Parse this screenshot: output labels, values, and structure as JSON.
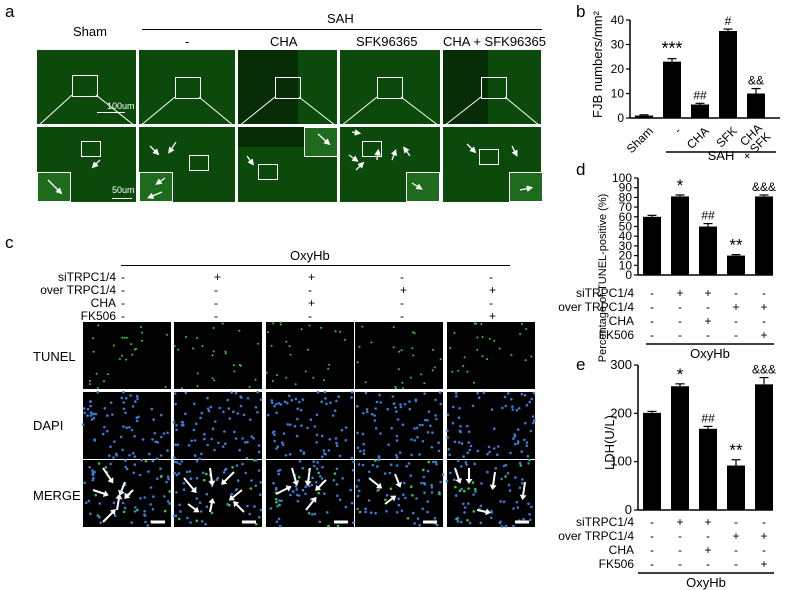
{
  "panel_labels": {
    "a": "a",
    "b": "b",
    "c": "c",
    "d": "d",
    "e": "e"
  },
  "panel_a": {
    "header_sham": "Sham",
    "header_sah": "SAH",
    "col_labels": [
      "-",
      "CHA",
      "SFK96365",
      "CHA + SFK96365"
    ],
    "scalebar_top": "100um",
    "scalebar_bottom": "50um"
  },
  "panel_c": {
    "header": "OxyHb",
    "row_names": [
      "siTRPC1/4",
      "over TRPC1/4",
      "CHA",
      "FK506"
    ],
    "matrix": [
      [
        "-",
        "+",
        "+",
        "-",
        "-"
      ],
      [
        "-",
        "-",
        "-",
        "+",
        "+"
      ],
      [
        "-",
        "-",
        "+",
        "-",
        "-"
      ],
      [
        "-",
        "-",
        "-",
        "-",
        "+"
      ]
    ],
    "image_rows": [
      "TUNEL",
      "DAPI",
      "MERGE"
    ]
  },
  "chart_data": [
    {
      "id": "b",
      "type": "bar",
      "ylabel": "FJB numbers/mm²",
      "ylim": [
        0,
        40
      ],
      "yticks": [
        "0",
        "10",
        "20",
        "30",
        "40"
      ],
      "categories": [
        "Sham",
        "-",
        "CHA",
        "SFK",
        "CHA\n+ SFK"
      ],
      "values": [
        1,
        23,
        5.5,
        35.5,
        10
      ],
      "errors": [
        0.3,
        1.2,
        0.5,
        0.8,
        2
      ],
      "annotations": [
        "",
        "***",
        "##",
        "#",
        "&&"
      ],
      "group_label": "SAH"
    },
    {
      "id": "d",
      "type": "bar",
      "ylabel": "Percentage of TUNEL-positive (%)",
      "ylim": [
        0,
        100
      ],
      "yticks": [
        "0",
        "10",
        "20",
        "30",
        "40",
        "50",
        "60",
        "70",
        "80",
        "90",
        "100"
      ],
      "values": [
        60,
        81,
        50,
        20,
        81
      ],
      "errors": [
        1.5,
        1.5,
        3,
        1,
        1.5
      ],
      "annotations": [
        "",
        "*",
        "##",
        "**",
        "&&&"
      ],
      "row_names": [
        "siTRPC1/4",
        "over TRPC1/4",
        "CHA",
        "FK506"
      ],
      "matrix": [
        [
          "-",
          "+",
          "+",
          "-",
          "-"
        ],
        [
          "-",
          "-",
          "-",
          "+",
          "+"
        ],
        [
          "-",
          "-",
          "+",
          "-",
          "-"
        ],
        [
          "-",
          "-",
          "-",
          "-",
          "+"
        ]
      ],
      "group_label": "OxyHb"
    },
    {
      "id": "e",
      "type": "bar",
      "ylabel": "LDH(U/L)",
      "ylim": [
        0,
        300
      ],
      "yticks": [
        "0",
        "100",
        "200",
        "300"
      ],
      "values": [
        201,
        256,
        168,
        92,
        260
      ],
      "errors": [
        3,
        5,
        5,
        12,
        14
      ],
      "annotations": [
        "",
        "*",
        "##",
        "**",
        "&&&"
      ],
      "row_names": [
        "siTRPC1/4",
        "over TRPC1/4",
        "CHA",
        "FK506"
      ],
      "matrix": [
        [
          "-",
          "+",
          "+",
          "-",
          "-"
        ],
        [
          "-",
          "-",
          "-",
          "+",
          "+"
        ],
        [
          "-",
          "-",
          "+",
          "-",
          "-"
        ],
        [
          "-",
          "-",
          "-",
          "-",
          "+"
        ]
      ],
      "group_label": "OxyHb"
    }
  ]
}
